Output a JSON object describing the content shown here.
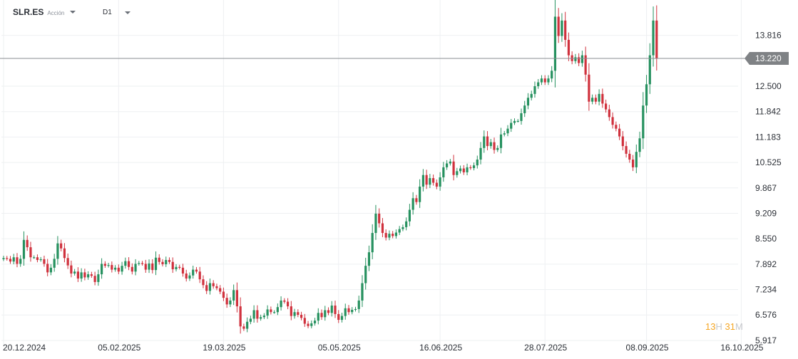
{
  "header": {
    "symbol": "SLR.ES",
    "instrument_type": "Acción",
    "timeframe": "D1"
  },
  "countdown": {
    "hours": "13",
    "hours_unit": "H",
    "minutes": "31",
    "minutes_unit": "M"
  },
  "colors": {
    "up": "#26915f",
    "down": "#d0313d",
    "grid": "#eef0f2",
    "price_line": "#8a8d91",
    "price_tag": "#7f8285",
    "axis_text": "#2b2f36"
  },
  "chart_data": {
    "type": "candlestick",
    "title": "",
    "current_price": 13.22,
    "current_price_label": "13.220",
    "ylim": [
      5.75,
      14.4
    ],
    "y_ticks": [
      "13.816",
      "12.500",
      "11.842",
      "11.183",
      "10.525",
      "9.867",
      "9.209",
      "8.550",
      "7.892",
      "7.234",
      "6.576",
      "5.917"
    ],
    "x_tick_labels": [
      "20.12.2024",
      "05.02.2025",
      "19.03.2025",
      "05.05.2025",
      "16.06.2025",
      "28.07.2025",
      "08.09.2025",
      "16.10.2025"
    ],
    "grid": true,
    "closes": [
      8.05,
      8.03,
      7.96,
      8.07,
      7.9,
      8.03,
      8.52,
      8.33,
      8.07,
      8.07,
      8.0,
      8.02,
      7.9,
      7.68,
      7.8,
      8.03,
      8.43,
      8.3,
      8.05,
      7.86,
      7.65,
      7.7,
      7.52,
      7.68,
      7.55,
      7.63,
      7.59,
      7.43,
      7.63,
      7.9,
      7.85,
      7.87,
      7.75,
      7.8,
      7.7,
      7.85,
      7.97,
      7.82,
      7.7,
      7.9,
      7.92,
      7.9,
      7.75,
      7.91,
      7.74,
      8.06,
      7.95,
      7.89,
      8.0,
      7.95,
      7.76,
      7.82,
      7.8,
      7.65,
      7.52,
      7.6,
      7.75,
      7.7,
      7.5,
      7.35,
      7.2,
      7.4,
      7.32,
      7.27,
      7.18,
      7.02,
      6.85,
      6.95,
      7.22,
      6.8,
      6.28,
      6.22,
      6.4,
      6.48,
      6.7,
      6.48,
      6.52,
      6.56,
      6.72,
      6.65,
      6.65,
      6.78,
      6.95,
      6.92,
      6.8,
      6.55,
      6.65,
      6.58,
      6.5,
      6.35,
      6.29,
      6.36,
      6.43,
      6.63,
      6.52,
      6.7,
      6.63,
      6.82,
      6.6,
      6.45,
      6.55,
      6.75,
      6.65,
      6.71,
      6.73,
      6.95,
      7.4,
      7.85,
      8.2,
      8.7,
      9.2,
      8.95,
      8.7,
      8.58,
      8.68,
      8.62,
      8.71,
      8.8,
      8.85,
      9.0,
      9.3,
      9.6,
      9.5,
      9.9,
      10.2,
      9.95,
      10.12,
      10.0,
      9.9,
      10.14,
      10.4,
      10.5,
      10.55,
      10.2,
      10.3,
      10.37,
      10.27,
      10.4,
      10.38,
      10.45,
      10.6,
      10.9,
      11.2,
      10.95,
      11.05,
      10.85,
      10.9,
      11.25,
      11.28,
      11.4,
      11.55,
      11.6,
      11.6,
      11.8,
      12.0,
      12.2,
      12.3,
      12.5,
      12.6,
      12.7,
      12.6,
      12.7,
      12.9,
      14.3,
      13.8,
      14.2,
      13.7,
      13.3,
      13.15,
      13.25,
      13.1,
      13.3,
      12.8,
      12.1,
      12.2,
      12.1,
      12.3,
      12.05,
      11.9,
      11.7,
      11.5,
      11.4,
      11.2,
      10.95,
      10.75,
      10.6,
      10.4,
      10.8,
      11.15,
      12.0,
      12.55,
      13.3,
      14.2,
      13.22
    ],
    "x_ticks": {
      "20.12.2024": 0,
      "05.02.2025": 34,
      "19.03.2025": 65,
      "05.05.2025": 99,
      "16.06.2025": 129,
      "28.07.2025": 160,
      "08.09.2025": 190,
      "16.10.2025": 218
    }
  }
}
